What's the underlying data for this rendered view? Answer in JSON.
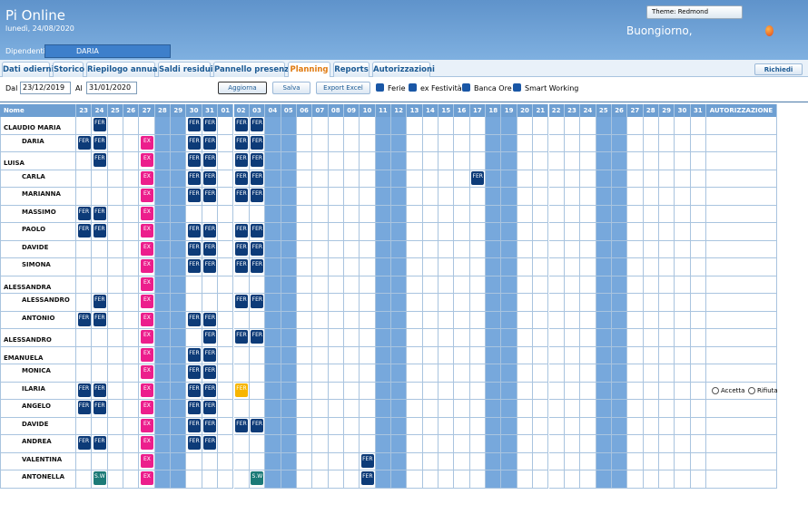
{
  "header": {
    "title": "Pi Online",
    "date": "lunedì, 24/08/2020",
    "theme": "Theme: Redmond",
    "greeting": "Buongiorno,"
  },
  "employee": {
    "label": "Dipendenti",
    "selected": "DARIA"
  },
  "tabs": [
    "Dati odierni",
    "Storico",
    "Riepilogo annuale",
    "Saldi residui",
    "Pannello presenze",
    "Planning",
    "Reports",
    "Autorizzazioni"
  ],
  "active_tab": "Planning",
  "request_button": "Richiedi",
  "toolbar": {
    "from_label": "Dal",
    "from": "23/12/2019",
    "to_label": "Al",
    "to": "31/01/2020",
    "refresh": "Aggiorna",
    "save": "Salva",
    "export": "Export Excel",
    "filters": [
      "Ferie",
      "ex Festività",
      "Banca Ore",
      "Smart Working"
    ]
  },
  "planning": {
    "name_header": "Nome",
    "auth_header": "AUTORIZZAZIONE",
    "days": [
      "23",
      "24",
      "25",
      "26",
      "27",
      "28",
      "29",
      "30",
      "31",
      "01",
      "02",
      "03",
      "04",
      "05",
      "06",
      "07",
      "08",
      "09",
      "10",
      "11",
      "12",
      "13",
      "14",
      "15",
      "16",
      "17",
      "18",
      "19",
      "20",
      "21",
      "22",
      "23",
      "24",
      "25",
      "26",
      "27",
      "28",
      "29",
      "30",
      "31"
    ],
    "code_colors": {
      "FER": "#0d3b78",
      "EX": "#ec1e8c",
      "S.W": "#1b7a77"
    },
    "rows": [
      {
        "name": "CLAUDIO MARIA",
        "cells": [
          null,
          "FER",
          null,
          null,
          null,
          null,
          null,
          "FER",
          "FER",
          null,
          "FER",
          "FER",
          null,
          null,
          null,
          null,
          null,
          null,
          null,
          null,
          null,
          null,
          null,
          null,
          null,
          null,
          null,
          null,
          null,
          null,
          null,
          null,
          null,
          null,
          null,
          null,
          null,
          null,
          null,
          null
        ]
      },
      {
        "name": "DARIA",
        "cells": [
          "FER",
          "FER",
          null,
          null,
          "EX",
          null,
          null,
          "FER",
          "FER",
          null,
          "FER",
          "FER",
          null,
          null,
          null,
          null,
          null,
          null,
          null,
          null,
          null,
          null,
          null,
          null,
          null,
          null,
          null,
          null,
          null,
          null,
          null,
          null,
          null,
          null,
          null,
          null,
          null,
          null,
          null,
          null
        ]
      },
      {
        "name": "LUISA",
        "cells": [
          null,
          "FER",
          null,
          null,
          "EX",
          null,
          null,
          "FER",
          "FER",
          null,
          "FER",
          "FER",
          null,
          null,
          null,
          null,
          null,
          null,
          null,
          null,
          null,
          null,
          null,
          null,
          null,
          null,
          null,
          null,
          null,
          null,
          null,
          null,
          null,
          null,
          null,
          null,
          null,
          null,
          null,
          null
        ]
      },
      {
        "name": "CARLA",
        "cells": [
          null,
          null,
          null,
          null,
          "EX",
          null,
          null,
          "FER",
          "FER",
          null,
          "FER",
          "FER",
          null,
          null,
          null,
          null,
          null,
          null,
          null,
          null,
          null,
          null,
          null,
          null,
          null,
          "FER",
          null,
          null,
          null,
          null,
          null,
          null,
          null,
          null,
          null,
          null,
          null,
          null,
          null,
          null
        ]
      },
      {
        "name": "MARIANNA",
        "cells": [
          null,
          null,
          null,
          null,
          "EX",
          null,
          null,
          "FER",
          "FER",
          null,
          "FER",
          "FER",
          null,
          null,
          null,
          null,
          null,
          null,
          null,
          null,
          null,
          null,
          null,
          null,
          null,
          null,
          null,
          null,
          null,
          null,
          null,
          null,
          null,
          null,
          null,
          null,
          null,
          null,
          null,
          null
        ]
      },
      {
        "name": "MASSIMO",
        "cells": [
          "FER",
          "FER",
          null,
          null,
          "EX",
          null,
          null,
          null,
          null,
          null,
          null,
          null,
          null,
          null,
          null,
          null,
          null,
          null,
          null,
          null,
          null,
          null,
          null,
          null,
          null,
          null,
          null,
          null,
          null,
          null,
          null,
          null,
          null,
          null,
          null,
          null,
          null,
          null,
          null,
          null
        ]
      },
      {
        "name": "PAOLO",
        "cells": [
          "FER",
          "FER",
          null,
          null,
          "EX",
          null,
          null,
          "FER",
          "FER",
          null,
          "FER",
          "FER",
          null,
          null,
          null,
          null,
          null,
          null,
          null,
          null,
          null,
          null,
          null,
          null,
          null,
          null,
          null,
          null,
          null,
          null,
          null,
          null,
          null,
          null,
          null,
          null,
          null,
          null,
          null,
          null
        ]
      },
      {
        "name": "DAVIDE",
        "cells": [
          null,
          null,
          null,
          null,
          "EX",
          null,
          null,
          "FER",
          "FER",
          null,
          "FER",
          "FER",
          null,
          null,
          null,
          null,
          null,
          null,
          null,
          null,
          null,
          null,
          null,
          null,
          null,
          null,
          null,
          null,
          null,
          null,
          null,
          null,
          null,
          null,
          null,
          null,
          null,
          null,
          null,
          null
        ]
      },
      {
        "name": "SIMONA",
        "cells": [
          null,
          null,
          null,
          null,
          "EX",
          null,
          null,
          "FER",
          "FER",
          null,
          "FER",
          "FER",
          null,
          null,
          null,
          null,
          null,
          null,
          null,
          null,
          null,
          null,
          null,
          null,
          null,
          null,
          null,
          null,
          null,
          null,
          null,
          null,
          null,
          null,
          null,
          null,
          null,
          null,
          null,
          null
        ]
      },
      {
        "name": "ALESSANDRA",
        "cells": [
          null,
          null,
          null,
          null,
          "EX",
          null,
          null,
          null,
          null,
          null,
          null,
          null,
          null,
          null,
          null,
          null,
          null,
          null,
          null,
          null,
          null,
          null,
          null,
          null,
          null,
          null,
          null,
          null,
          null,
          null,
          null,
          null,
          null,
          null,
          null,
          null,
          null,
          null,
          null,
          null
        ]
      },
      {
        "name": "ALESSANDRO",
        "cells": [
          null,
          "FER",
          null,
          null,
          "EX",
          null,
          null,
          null,
          null,
          null,
          "FER",
          "FER",
          null,
          null,
          null,
          null,
          null,
          null,
          null,
          null,
          null,
          null,
          null,
          null,
          null,
          null,
          null,
          null,
          null,
          null,
          null,
          null,
          null,
          null,
          null,
          null,
          null,
          null,
          null,
          null
        ]
      },
      {
        "name": "ANTONIO",
        "cells": [
          "FER",
          "FER",
          null,
          null,
          "EX",
          null,
          null,
          "FER",
          "FER",
          null,
          null,
          null,
          null,
          null,
          null,
          null,
          null,
          null,
          null,
          null,
          null,
          null,
          null,
          null,
          null,
          null,
          null,
          null,
          null,
          null,
          null,
          null,
          null,
          null,
          null,
          null,
          null,
          null,
          null,
          null
        ]
      },
      {
        "name": "ALESSANDRO",
        "cells": [
          null,
          null,
          null,
          null,
          "EX",
          null,
          null,
          null,
          "FER",
          null,
          "FER",
          "FER",
          null,
          null,
          null,
          null,
          null,
          null,
          null,
          null,
          null,
          null,
          null,
          null,
          null,
          null,
          null,
          null,
          null,
          null,
          null,
          null,
          null,
          null,
          null,
          null,
          null,
          null,
          null,
          null
        ]
      },
      {
        "name": "EMANUELA",
        "cells": [
          null,
          null,
          null,
          null,
          "EX",
          null,
          null,
          "FER",
          "FER",
          null,
          null,
          null,
          null,
          null,
          null,
          null,
          null,
          null,
          null,
          null,
          null,
          null,
          null,
          null,
          null,
          null,
          null,
          null,
          null,
          null,
          null,
          null,
          null,
          null,
          null,
          null,
          null,
          null,
          null,
          null
        ]
      },
      {
        "name": "MONICA",
        "cells": [
          null,
          null,
          null,
          null,
          "EX",
          null,
          null,
          "FER",
          "FER",
          null,
          null,
          null,
          null,
          null,
          null,
          null,
          null,
          null,
          null,
          null,
          null,
          null,
          null,
          null,
          null,
          null,
          null,
          null,
          null,
          null,
          null,
          null,
          null,
          null,
          null,
          null,
          null,
          null,
          null,
          null
        ]
      },
      {
        "name": "ILARIA",
        "cells": [
          "FER",
          "FER",
          null,
          null,
          "EX",
          null,
          null,
          "FER",
          "FER",
          null,
          {
            "text": "FER",
            "color": "#f7b500"
          },
          null,
          null,
          null,
          null,
          null,
          null,
          null,
          null,
          null,
          null,
          null,
          null,
          null,
          null,
          null,
          null,
          null,
          null,
          null,
          null,
          null,
          null,
          null,
          null,
          null,
          null,
          null,
          null,
          null
        ],
        "actions": [
          "Accetta",
          "Rifiuta"
        ]
      },
      {
        "name": "ANGELO",
        "cells": [
          "FER",
          "FER",
          null,
          null,
          "EX",
          null,
          null,
          "FER",
          "FER",
          null,
          null,
          null,
          null,
          null,
          null,
          null,
          null,
          null,
          null,
          null,
          null,
          null,
          null,
          null,
          null,
          null,
          null,
          null,
          null,
          null,
          null,
          null,
          null,
          null,
          null,
          null,
          null,
          null,
          null,
          null
        ]
      },
      {
        "name": "DAVIDE",
        "cells": [
          null,
          null,
          null,
          null,
          "EX",
          null,
          null,
          "FER",
          "FER",
          null,
          "FER",
          "FER",
          null,
          null,
          null,
          null,
          null,
          null,
          null,
          null,
          null,
          null,
          null,
          null,
          null,
          null,
          null,
          null,
          null,
          null,
          null,
          null,
          null,
          null,
          null,
          null,
          null,
          null,
          null,
          null
        ]
      },
      {
        "name": "ANDREA",
        "cells": [
          "FER",
          "FER",
          null,
          null,
          "EX",
          null,
          null,
          "FER",
          "FER",
          null,
          null,
          null,
          null,
          null,
          null,
          null,
          null,
          null,
          null,
          null,
          null,
          null,
          null,
          null,
          null,
          null,
          null,
          null,
          null,
          null,
          null,
          null,
          null,
          null,
          null,
          null,
          null,
          null,
          null,
          null
        ]
      },
      {
        "name": "VALENTINA",
        "cells": [
          null,
          null,
          null,
          null,
          "EX",
          null,
          null,
          null,
          null,
          null,
          null,
          null,
          null,
          null,
          null,
          null,
          null,
          null,
          "FER",
          null,
          null,
          null,
          null,
          null,
          null,
          null,
          null,
          null,
          null,
          null,
          null,
          null,
          null,
          null,
          null,
          null,
          null,
          null,
          null,
          null
        ]
      },
      {
        "name": "ANTONELLA",
        "cells": [
          null,
          "S.W",
          null,
          null,
          "EX",
          null,
          null,
          null,
          null,
          null,
          null,
          "S.W",
          null,
          null,
          null,
          null,
          null,
          null,
          "FER",
          null,
          null,
          null,
          null,
          null,
          null,
          null,
          null,
          null,
          null,
          null,
          null,
          null,
          null,
          null,
          null,
          null,
          null,
          null,
          null,
          null
        ]
      }
    ]
  }
}
